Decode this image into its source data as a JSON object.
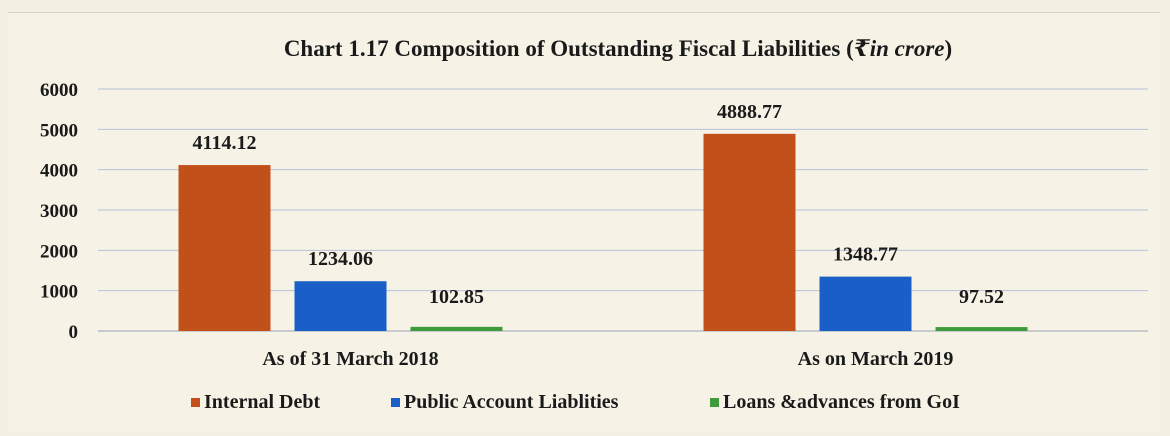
{
  "chart_data": {
    "type": "bar",
    "title": "Chart 1.17 Composition of Outstanding Fiscal Liabilities (₹in crore)",
    "title_main": "Chart 1.17 Composition of Outstanding Fiscal Liabilities (",
    "title_unit": "₹in crore",
    "title_close": ")",
    "categories": [
      "As of 31 March 2018",
      "As on March 2019"
    ],
    "series": [
      {
        "name": "Internal Debt",
        "values": [
          4114.12,
          4888.77
        ],
        "color": "#c1501a"
      },
      {
        "name": "Public Account Liablities",
        "values": [
          1234.06,
          1348.77
        ],
        "color": "#1a5fc8"
      },
      {
        "name": "Loans &advances from GoI",
        "values": [
          102.85,
          97.52
        ],
        "color": "#3f9a3a"
      }
    ],
    "value_labels": [
      [
        "4114.12",
        "4888.77"
      ],
      [
        "1234.06",
        "1348.77"
      ],
      [
        "102.85",
        "97.52"
      ]
    ],
    "yticks": [
      "0",
      "1000",
      "2000",
      "3000",
      "4000",
      "5000",
      "6000"
    ],
    "ylim": [
      0,
      6000
    ],
    "xlabel": "",
    "ylabel": "",
    "grid": true,
    "legend_position": "bottom",
    "colors": {
      "gridline": "#b7c2d6",
      "axis": "#9aa3b5"
    }
  }
}
